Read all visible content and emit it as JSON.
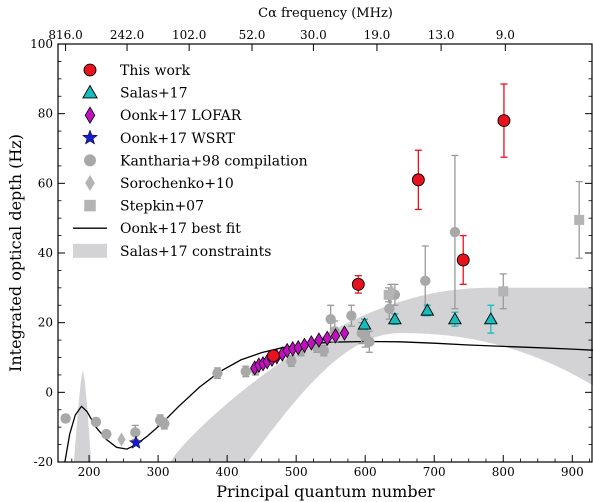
{
  "chart_data": {
    "type": "scatter",
    "xlabel": "Principal quantum number",
    "ylabel": "Integrated optical depth (Hz)",
    "top_axis_label": "Cα frequency (MHz)",
    "xlim": [
      155,
      930
    ],
    "ylim": [
      -20,
      100
    ],
    "x_ticks": [
      200,
      300,
      400,
      500,
      600,
      700,
      800,
      900
    ],
    "y_ticks": [
      -20,
      0,
      20,
      40,
      60,
      80,
      100
    ],
    "top_ticks": [
      {
        "n": 166,
        "label": "816.0"
      },
      {
        "n": 255,
        "label": "242.0"
      },
      {
        "n": 345,
        "label": "102.0"
      },
      {
        "n": 436,
        "label": "52.0"
      },
      {
        "n": 525,
        "label": "30.0"
      },
      {
        "n": 617,
        "label": "19.0"
      },
      {
        "n": 710,
        "label": "13.0"
      },
      {
        "n": 803,
        "label": "9.0"
      }
    ],
    "legend_position": "top-left",
    "series": [
      {
        "name": "This work",
        "marker": "circle",
        "color": "#e8121e",
        "points": [
          [
            467,
            10.5,
            1.2
          ],
          [
            590,
            31,
            2.5
          ],
          [
            677,
            61,
            8.5
          ],
          [
            742,
            38,
            7
          ],
          [
            801,
            78,
            10.5
          ]
        ]
      },
      {
        "name": "Salas+17",
        "marker": "triangle",
        "color": "#17bcbc",
        "points": [
          [
            599,
            19.5,
            1.5
          ],
          [
            643,
            21,
            1.5
          ],
          [
            690,
            23.5,
            1.5
          ],
          [
            730,
            21,
            2
          ],
          [
            782,
            21,
            4
          ]
        ]
      },
      {
        "name": "Oonk+17 LOFAR",
        "marker": "diamond",
        "color": "#bf11bf",
        "points": [
          [
            440,
            7
          ],
          [
            446,
            7.8
          ],
          [
            452,
            8.2
          ],
          [
            458,
            8.8
          ],
          [
            465,
            9.5
          ],
          [
            472,
            10.2
          ],
          [
            480,
            11
          ],
          [
            487,
            12
          ],
          [
            495,
            12.5
          ],
          [
            503,
            12.8
          ],
          [
            512,
            13.5
          ],
          [
            522,
            14.2
          ],
          [
            533,
            15
          ],
          [
            545,
            15.5
          ],
          [
            557,
            16.2
          ],
          [
            570,
            17
          ]
        ]
      },
      {
        "name": "Oonk+17 WSRT",
        "marker": "star",
        "color": "#1a1ad1",
        "points": [
          [
            268,
            -14.5
          ]
        ]
      },
      {
        "name": "Kantharia+98 compilation",
        "marker": "circle",
        "color": "#a8a8a8",
        "points": [
          [
            166,
            -7.5,
            1
          ],
          [
            210,
            -8.5,
            1
          ],
          [
            225,
            -12,
            1
          ],
          [
            267,
            -11.5,
            2
          ],
          [
            303,
            -8,
            1.5
          ],
          [
            309,
            -9,
            1.5
          ],
          [
            386,
            5.5,
            1.5
          ],
          [
            427,
            6,
            1.5
          ],
          [
            441,
            6.5,
            1.5
          ],
          [
            493,
            9,
            1.5
          ],
          [
            507,
            12,
            1.5
          ],
          [
            530,
            13,
            1.5
          ],
          [
            540,
            12,
            1.5
          ],
          [
            550,
            21,
            4
          ],
          [
            556,
            17.5,
            3
          ],
          [
            580,
            22,
            3
          ],
          [
            595,
            17,
            3
          ],
          [
            600,
            16,
            3
          ],
          [
            606,
            14.5,
            3
          ],
          [
            635,
            24,
            3
          ],
          [
            637,
            28,
            3
          ],
          [
            643,
            28,
            3
          ],
          [
            687,
            32,
            10
          ],
          [
            730,
            46,
            22
          ]
        ]
      },
      {
        "name": "Sorochenko+10",
        "marker": "diamond",
        "color": "#b4b4b4",
        "points": [
          [
            247,
            -13.5
          ],
          [
            638,
            29
          ]
        ]
      },
      {
        "name": "Stepkin+07",
        "marker": "square",
        "color": "#b4b4b4",
        "points": [
          [
            634,
            28,
            2
          ],
          [
            800,
            29,
            5
          ],
          [
            910,
            49.5,
            11
          ]
        ]
      },
      {
        "name": "Oonk+17 best fit",
        "marker": "line",
        "color": "#000000"
      },
      {
        "name": "Salas+17 constraints",
        "marker": "band",
        "color": "#d3d3d6"
      }
    ]
  }
}
